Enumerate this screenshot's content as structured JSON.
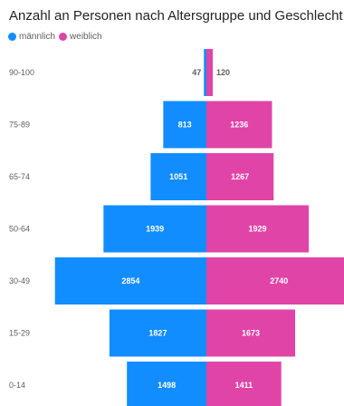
{
  "colors": {
    "male": "#118dff",
    "female": "#e044a7",
    "label_inside": "#ffffff",
    "label_outside": "#605e5c"
  },
  "chart_data": {
    "type": "bar",
    "orientation": "horizontal-population-pyramid",
    "title": "Anzahl an Personen nach Altersgruppe und Geschlecht",
    "legend_position": "top-left",
    "categories": [
      "90-100",
      "75-89",
      "65-74",
      "50-64",
      "30-49",
      "15-29",
      "0-14"
    ],
    "series": [
      {
        "name": "männlich",
        "values": [
          47,
          813,
          1051,
          1939,
          2854,
          1827,
          1498
        ]
      },
      {
        "name": "weiblich",
        "values": [
          120,
          1236,
          1267,
          1929,
          2740,
          1673,
          1411
        ]
      }
    ],
    "xlim": [
      -2900,
      2900
    ],
    "grid": false
  }
}
